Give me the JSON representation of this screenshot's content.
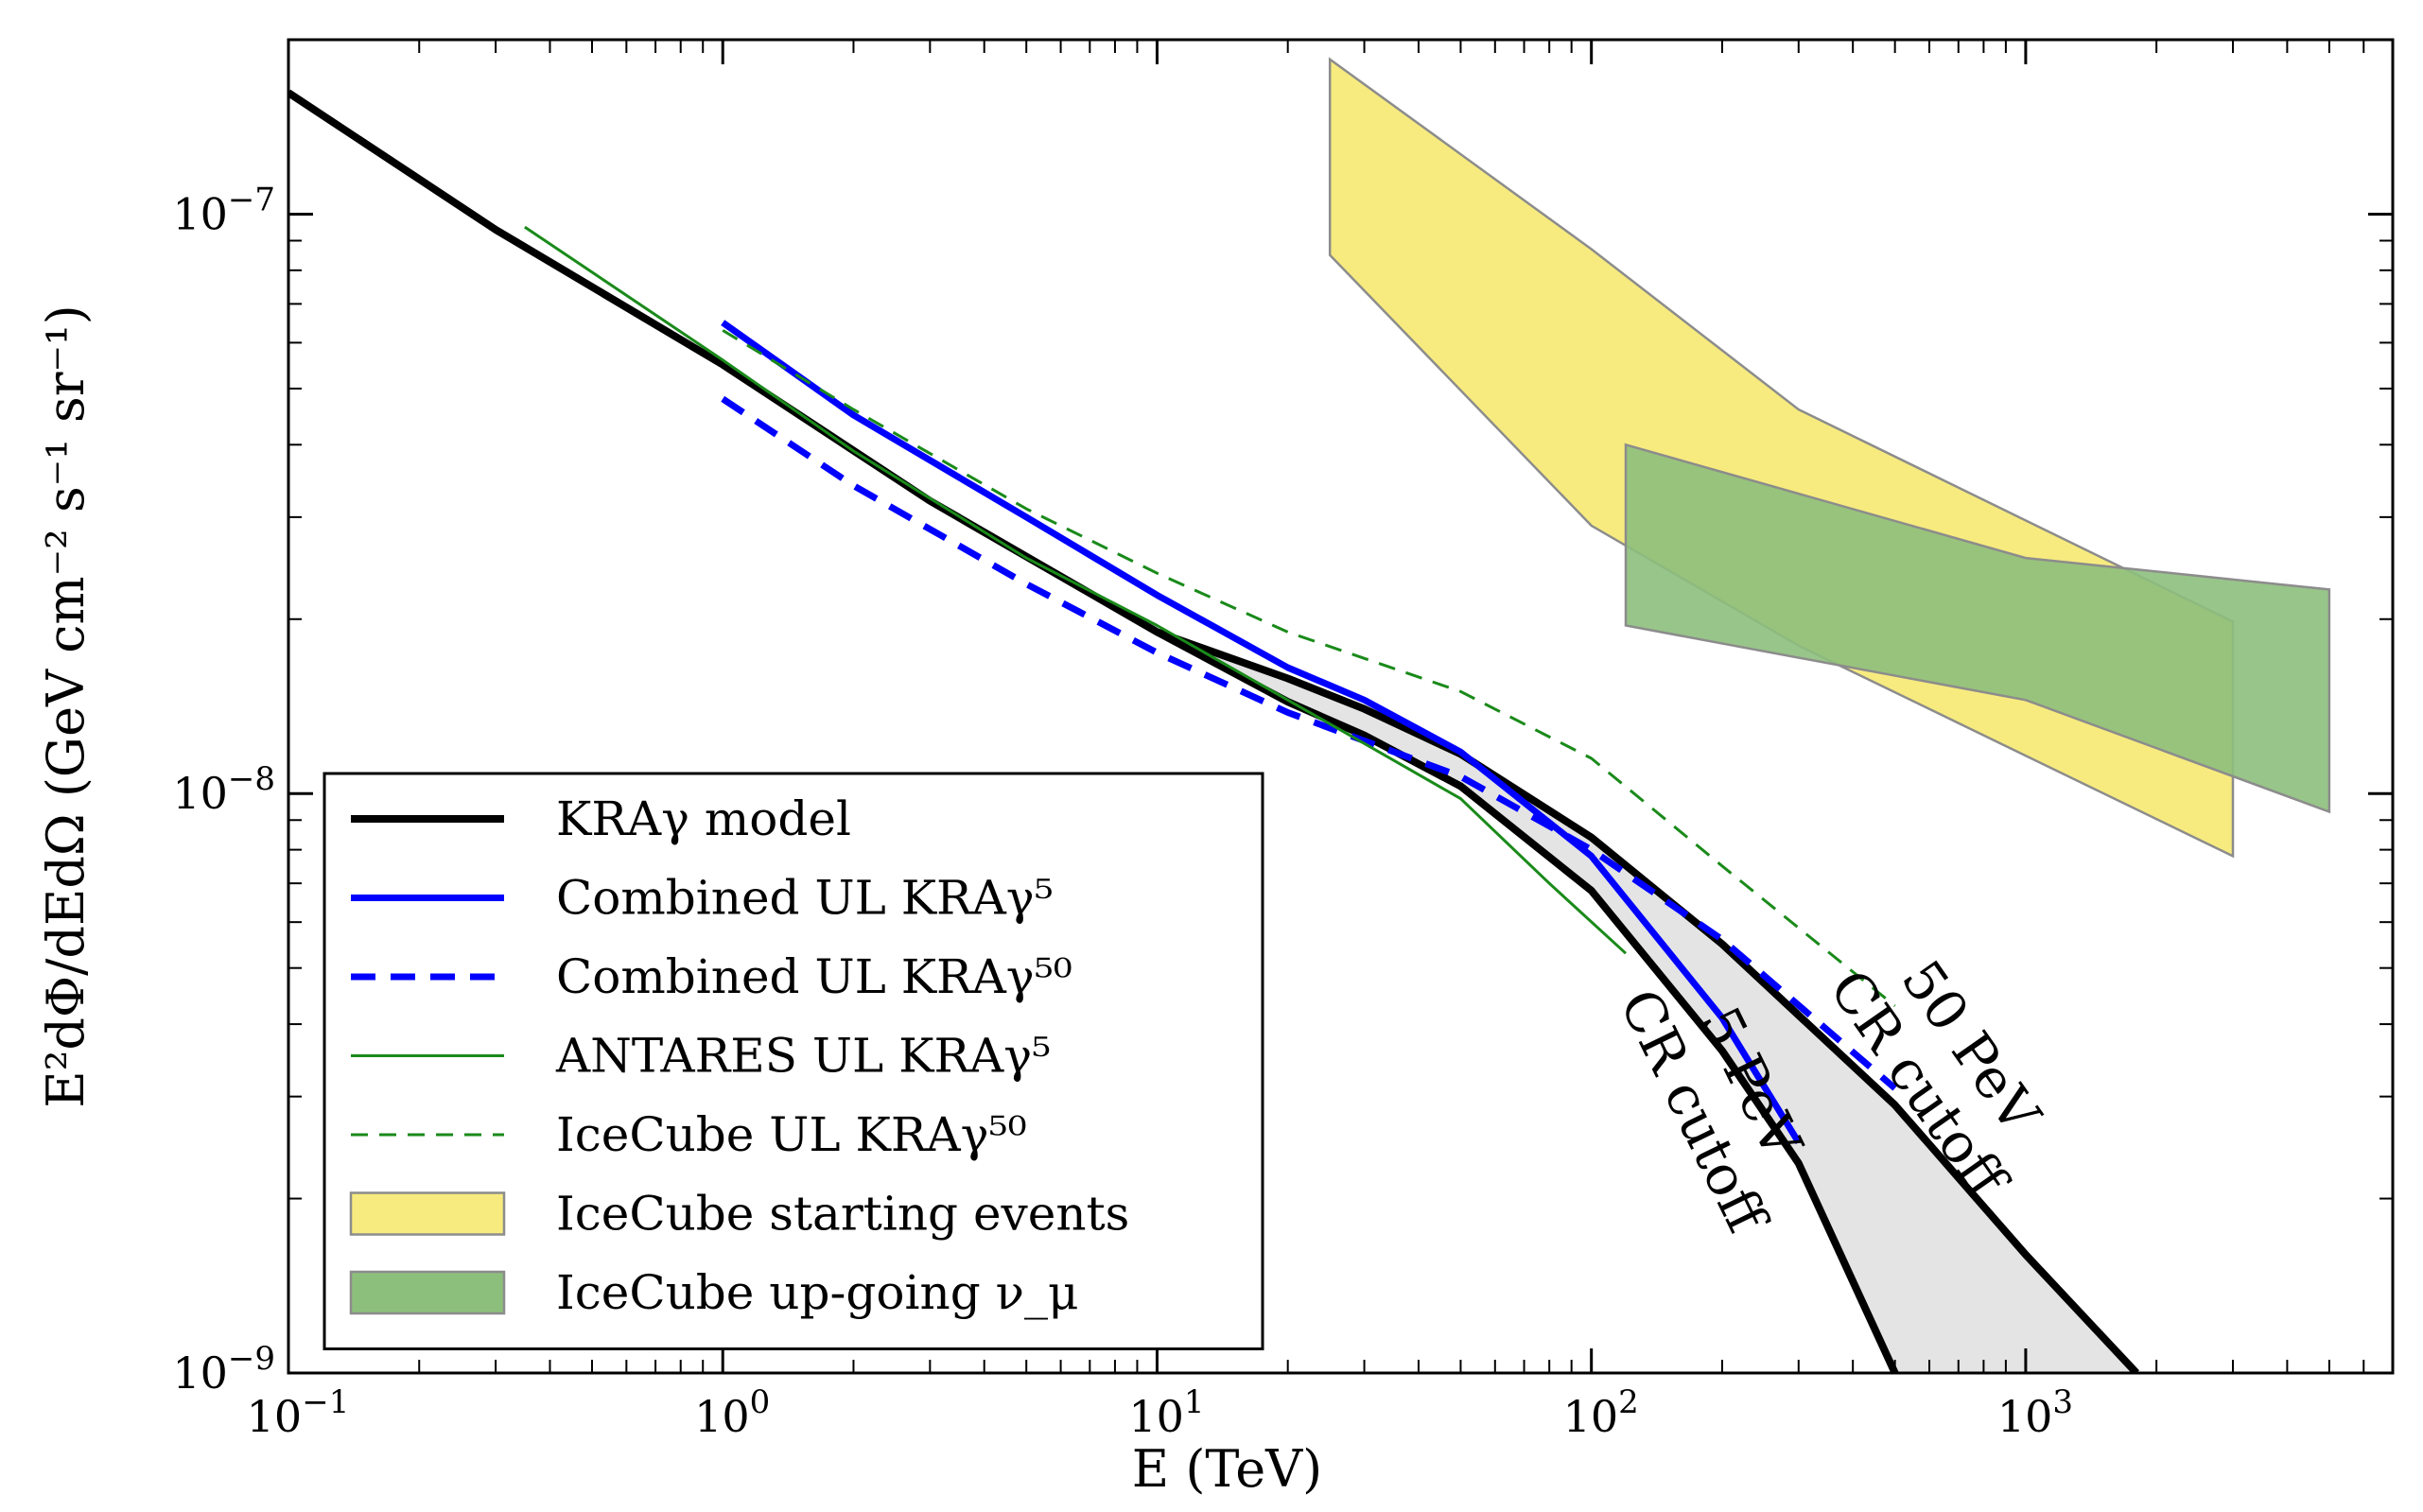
{
  "chart_data": {
    "type": "line",
    "xlabel": "E (TeV)",
    "ylabel": "E²dΦ/dEdΩ (GeV cm⁻² s⁻¹ sr⁻¹)",
    "x_scale": "log",
    "y_scale": "log",
    "xlim": [
      0.1,
      7000
    ],
    "ylim": [
      1e-09,
      2e-07
    ],
    "x_ticks": [
      {
        "value": 0.1,
        "base": "10",
        "exp": "−1"
      },
      {
        "value": 1,
        "base": "10",
        "exp": "0"
      },
      {
        "value": 10,
        "base": "10",
        "exp": "1"
      },
      {
        "value": 100,
        "base": "10",
        "exp": "2"
      },
      {
        "value": 1000,
        "base": "10",
        "exp": "3"
      }
    ],
    "y_ticks": [
      {
        "value": 1e-09,
        "base": "10",
        "exp": "−9"
      },
      {
        "value": 1e-08,
        "base": "10",
        "exp": "−8"
      },
      {
        "value": 1e-07,
        "base": "10",
        "exp": "−7"
      }
    ],
    "grid": false,
    "legend_position": "lower-left",
    "shaded_band": {
      "name": "KRAγ model range",
      "color": "#e4e4e4",
      "upper": [
        [
          10,
          1.9e-08
        ],
        [
          20,
          1.58e-08
        ],
        [
          30,
          1.4e-08
        ],
        [
          50,
          1.17e-08
        ],
        [
          100,
          8.4e-09
        ],
        [
          200,
          5.5e-09
        ],
        [
          500,
          2.9e-09
        ],
        [
          1000,
          1.6e-09
        ],
        [
          1800,
          1e-09
        ]
      ],
      "lower": [
        [
          10,
          1.9e-08
        ],
        [
          20,
          1.44e-08
        ],
        [
          30,
          1.26e-08
        ],
        [
          50,
          1.03e-08
        ],
        [
          100,
          6.8e-09
        ],
        [
          200,
          3.6e-09
        ],
        [
          300,
          2.3e-09
        ],
        [
          500,
          1e-09
        ]
      ]
    },
    "series": [
      {
        "name": "KRAγ model",
        "color": "#000000",
        "width": 8,
        "dash": "none",
        "points": [
          [
            0.1,
            1.62e-07
          ],
          [
            0.3,
            9.4e-08
          ],
          [
            1,
            5.5e-08
          ],
          [
            3,
            3.2e-08
          ],
          [
            10,
            1.9e-08
          ],
          [
            20,
            1.58e-08
          ],
          [
            30,
            1.4e-08
          ],
          [
            50,
            1.17e-08
          ],
          [
            100,
            8.4e-09
          ],
          [
            200,
            5.5e-09
          ],
          [
            500,
            2.9e-09
          ],
          [
            1000,
            1.6e-09
          ],
          [
            1800,
            1e-09
          ]
        ]
      },
      {
        "name": "",
        "color": "#000000",
        "width": 8,
        "dash": "none",
        "legend": false,
        "points": [
          [
            10,
            1.9e-08
          ],
          [
            20,
            1.44e-08
          ],
          [
            30,
            1.26e-08
          ],
          [
            50,
            1.03e-08
          ],
          [
            100,
            6.8e-09
          ],
          [
            200,
            3.6e-09
          ],
          [
            300,
            2.3e-09
          ],
          [
            500,
            1e-09
          ]
        ]
      },
      {
        "name": "Combined UL KRAγ⁵",
        "color": "#0000ff",
        "width": 7,
        "dash": "none",
        "points": [
          [
            1,
            6.5e-08
          ],
          [
            2,
            4.5e-08
          ],
          [
            5,
            3e-08
          ],
          [
            10,
            2.2e-08
          ],
          [
            20,
            1.65e-08
          ],
          [
            30,
            1.45e-08
          ],
          [
            50,
            1.18e-08
          ],
          [
            100,
            7.8e-09
          ],
          [
            200,
            4.1e-09
          ],
          [
            300,
            2.5e-09
          ]
        ]
      },
      {
        "name": "Combined UL KRAγ⁵⁰",
        "color": "#0000ff",
        "width": 7,
        "dash": "26,16",
        "points": [
          [
            1,
            4.8e-08
          ],
          [
            2,
            3.4e-08
          ],
          [
            5,
            2.3e-08
          ],
          [
            10,
            1.75e-08
          ],
          [
            20,
            1.38e-08
          ],
          [
            50,
            1.07e-08
          ],
          [
            100,
            8e-09
          ],
          [
            200,
            5.6e-09
          ],
          [
            500,
            3.1e-09
          ]
        ]
      },
      {
        "name": "ANTARES UL KRAγ⁵",
        "color": "#1a8a1a",
        "width": 3,
        "dash": "none",
        "points": [
          [
            0.35,
            9.5e-08
          ],
          [
            1,
            5.6e-08
          ],
          [
            2,
            3.9e-08
          ],
          [
            5,
            2.55e-08
          ],
          [
            10,
            1.95e-08
          ],
          [
            20,
            1.45e-08
          ],
          [
            30,
            1.22e-08
          ],
          [
            50,
            9.8e-09
          ],
          [
            80,
            7e-09
          ],
          [
            120,
            5.3e-09
          ]
        ]
      },
      {
        "name": "IceCube UL KRAγ⁵⁰",
        "color": "#1a8a1a",
        "width": 3,
        "dash": "18,12",
        "points": [
          [
            1,
            6.3e-08
          ],
          [
            2,
            4.6e-08
          ],
          [
            5,
            3.1e-08
          ],
          [
            10,
            2.4e-08
          ],
          [
            20,
            1.9e-08
          ],
          [
            50,
            1.5e-08
          ],
          [
            100,
            1.15e-08
          ],
          [
            200,
            7.5e-09
          ],
          [
            500,
            4.3e-09
          ]
        ]
      }
    ],
    "bands": [
      {
        "name": "IceCube starting events",
        "fill": "#f7eb7f",
        "stroke": "#8c8c8c",
        "polygon": [
          [
            25,
            1.85e-07
          ],
          [
            100,
            8.7e-08
          ],
          [
            300,
            4.6e-08
          ],
          [
            3000,
            1.98e-08
          ],
          [
            3000,
            7.8e-09
          ],
          [
            300,
            1.8e-08
          ],
          [
            100,
            2.9e-08
          ],
          [
            25,
            8.5e-08
          ]
        ]
      },
      {
        "name": "IceCube up-going ν_μ",
        "fill": "#8dbf7c",
        "stroke": "#8c8c8c",
        "opacity": 0.9,
        "polygon": [
          [
            120,
            4e-08
          ],
          [
            1000,
            2.55e-08
          ],
          [
            5000,
            2.25e-08
          ],
          [
            5000,
            9.3e-09
          ],
          [
            1000,
            1.45e-08
          ],
          [
            120,
            1.95e-08
          ]
        ]
      }
    ],
    "legend": [
      {
        "label": "KRAγ model",
        "kind": "line",
        "color": "#000000",
        "width": 8,
        "dash": "none"
      },
      {
        "label": "Combined UL KRAγ⁵",
        "kind": "line",
        "color": "#0000ff",
        "width": 7,
        "dash": "none"
      },
      {
        "label": "Combined UL KRAγ⁵⁰",
        "kind": "line",
        "color": "#0000ff",
        "width": 7,
        "dash": "26,16"
      },
      {
        "label": "ANTARES UL KRAγ⁵",
        "kind": "line",
        "color": "#1a8a1a",
        "width": 3,
        "dash": "none"
      },
      {
        "label": "IceCube UL KRAγ⁵⁰",
        "kind": "line",
        "color": "#1a8a1a",
        "width": 3,
        "dash": "18,12"
      },
      {
        "label": "IceCube starting events",
        "kind": "patch",
        "color": "#f7eb7f"
      },
      {
        "label": "IceCube up-going ν_μ",
        "kind": "patch",
        "color": "#8dbf7c"
      }
    ],
    "annotations": [
      {
        "lines": [
          "5 PeV",
          "CR cutoff"
        ],
        "x": 200,
        "y": 3e-09,
        "rotate": 64
      },
      {
        "lines": [
          "50 PeV",
          "CR cutoff"
        ],
        "x": 650,
        "y": 3.4e-09,
        "rotate": 55
      }
    ]
  }
}
